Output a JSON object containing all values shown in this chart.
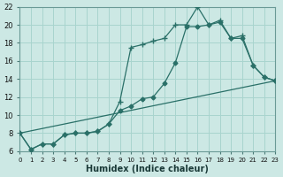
{
  "bg_color": "#cce8e4",
  "grid_color": "#a8d4ce",
  "line_color": "#2a7068",
  "xlabel": "Humidex (Indice chaleur)",
  "xlim": [
    0,
    23
  ],
  "ylim": [
    6,
    22
  ],
  "yticks": [
    6,
    8,
    10,
    12,
    14,
    16,
    18,
    20,
    22
  ],
  "xticks": [
    0,
    1,
    2,
    3,
    4,
    5,
    6,
    7,
    8,
    9,
    10,
    11,
    12,
    13,
    14,
    15,
    16,
    17,
    18,
    19,
    20,
    21,
    22,
    23
  ],
  "line1_x": [
    0,
    1,
    2,
    3,
    4,
    5,
    6,
    7,
    8,
    9,
    10,
    11,
    12,
    13,
    14,
    15,
    16,
    17,
    18,
    19,
    20,
    21,
    22,
    23
  ],
  "line1_y": [
    8.0,
    6.2,
    6.8,
    6.8,
    7.8,
    8.0,
    8.0,
    8.2,
    9.0,
    11.5,
    17.5,
    17.8,
    18.2,
    18.5,
    20.0,
    20.0,
    22.0,
    20.0,
    20.5,
    18.5,
    18.8,
    15.5,
    14.2,
    13.8
  ],
  "line2_x": [
    0,
    1,
    2,
    3,
    4,
    5,
    6,
    7,
    8,
    9,
    10,
    11,
    12,
    13,
    14,
    15,
    16,
    17,
    18,
    19,
    20,
    21,
    22,
    23
  ],
  "line2_y": [
    8.0,
    6.2,
    6.8,
    6.8,
    7.8,
    8.0,
    8.0,
    8.2,
    9.0,
    10.5,
    11.0,
    11.8,
    12.0,
    13.5,
    15.8,
    19.8,
    19.8,
    20.0,
    20.3,
    18.5,
    18.5,
    15.5,
    14.2,
    13.8
  ],
  "line3_x": [
    0,
    23
  ],
  "line3_y": [
    8.0,
    13.8
  ],
  "markersize": 2.5,
  "linewidth": 0.9
}
